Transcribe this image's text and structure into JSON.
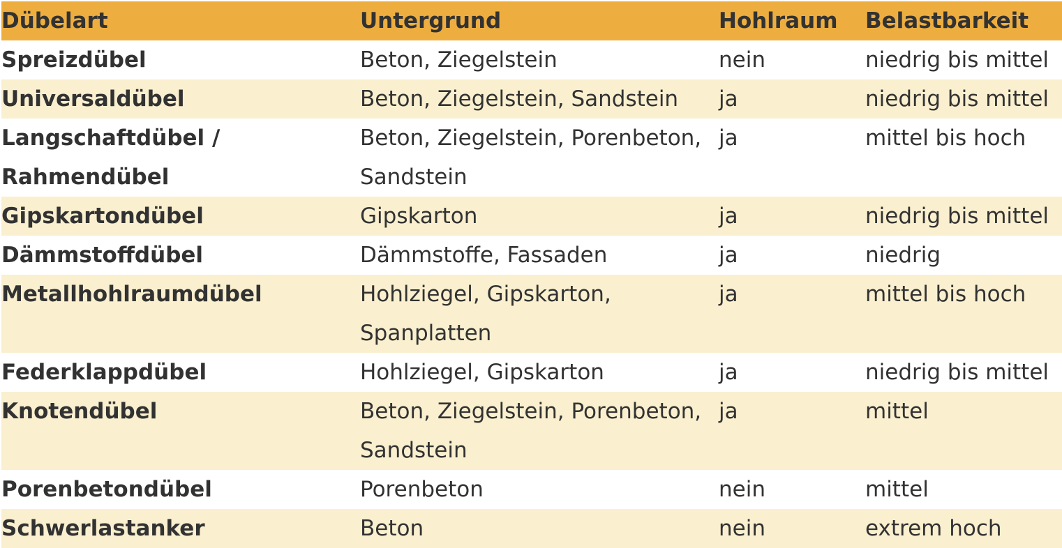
{
  "table": {
    "headers": [
      "Dübelart",
      "Untergrund",
      "Hohlraum",
      "Belastbarkeit"
    ],
    "rows": [
      [
        "Spreizdübel",
        "Beton, Ziegelstein",
        "nein",
        "niedrig bis mittel"
      ],
      [
        "Universaldübel",
        "Beton, Ziegelstein, Sandstein",
        "ja",
        "niedrig bis mittel"
      ],
      [
        "Langschaftdübel /\nRahmendübel",
        "Beton, Ziegelstein, Porenbeton,\nSandstein",
        "ja",
        "mittel bis hoch"
      ],
      [
        "Gipskartondübel",
        "Gipskarton",
        "ja",
        "niedrig bis mittel"
      ],
      [
        "Dämmstoffdübel",
        "Dämmstoffe, Fassaden",
        "ja",
        "niedrig"
      ],
      [
        "Metallhohlraumdübel",
        "Hohlziegel, Gipskarton,\nSpanplatten",
        "ja",
        "mittel bis hoch"
      ],
      [
        "Federklappdübel",
        "Hohlziegel, Gipskarton",
        "ja",
        "niedrig bis mittel"
      ],
      [
        "Knotendübel",
        "Beton, Ziegelstein, Porenbeton,\nSandstein",
        "ja",
        "mittel"
      ],
      [
        "Porenbetondübel",
        "Porenbeton",
        "nein",
        "mittel"
      ],
      [
        "Schwerlastanker",
        "Beton",
        "nein",
        "extrem hoch"
      ]
    ]
  },
  "colors": {
    "header_bg": "#eeae3f",
    "row_alt_bg": "#faf0cf",
    "row_bg": "#ffffff",
    "text": "#323232"
  }
}
